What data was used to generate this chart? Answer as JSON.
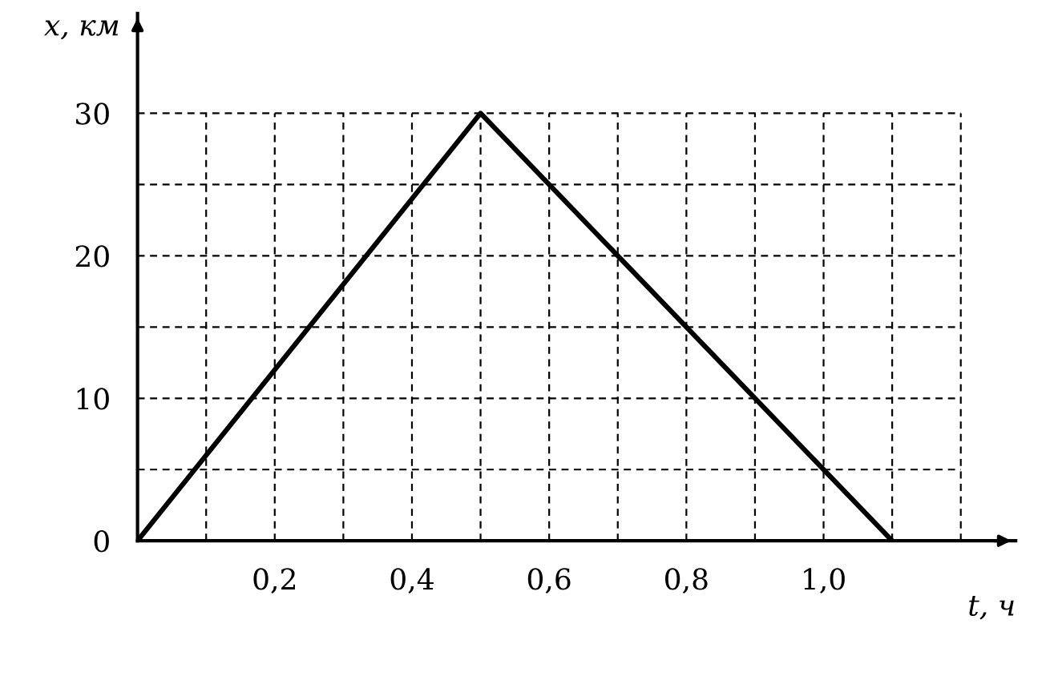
{
  "chart_data": {
    "type": "line",
    "xlabel": "t, ч",
    "ylabel": "x, км",
    "x": [
      0,
      0.5,
      1.1
    ],
    "series": [
      {
        "color": "#000000",
        "values": [
          0,
          30,
          0
        ]
      }
    ],
    "xlim": [
      0,
      1.28
    ],
    "ylim": [
      0,
      37
    ],
    "xticks": [
      {
        "value": 0.1,
        "label": null
      },
      {
        "value": 0.2,
        "label": "0,2"
      },
      {
        "value": 0.3,
        "label": null
      },
      {
        "value": 0.4,
        "label": "0,4"
      },
      {
        "value": 0.5,
        "label": null
      },
      {
        "value": 0.6,
        "label": "0,6"
      },
      {
        "value": 0.7,
        "label": null
      },
      {
        "value": 0.8,
        "label": "0,8"
      },
      {
        "value": 0.9,
        "label": null
      },
      {
        "value": 1.0,
        "label": "1,0"
      },
      {
        "value": 1.1,
        "label": null
      },
      {
        "value": 1.2,
        "label": null
      }
    ],
    "yticks": [
      0,
      {
        "value": 5,
        "label": null
      },
      10,
      {
        "value": 15,
        "label": null
      },
      20,
      {
        "value": 25,
        "label": null
      },
      30
    ],
    "grid": true,
    "legend": false,
    "marker": "none",
    "line_style": "solid"
  }
}
